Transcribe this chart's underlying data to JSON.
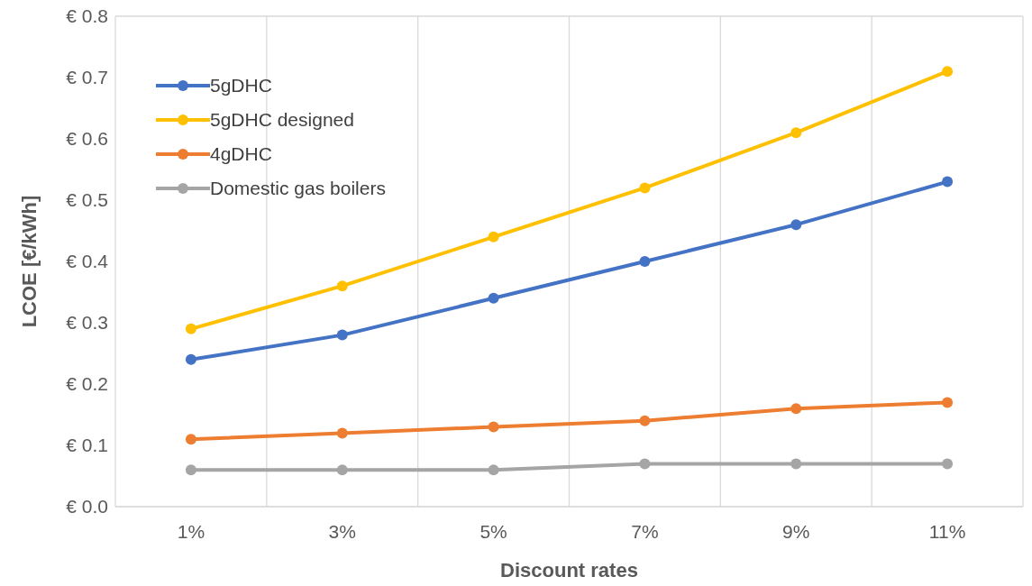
{
  "chart_data": {
    "type": "line",
    "xlabel": "Discount rates",
    "ylabel": "LCOE [€/kWh]",
    "categories": [
      "1%",
      "3%",
      "5%",
      "7%",
      "9%",
      "11%"
    ],
    "series": [
      {
        "name": "5gDHC",
        "color": "#4472c4",
        "values": [
          0.24,
          0.28,
          0.34,
          0.4,
          0.46,
          0.53
        ]
      },
      {
        "name": "5gDHC designed",
        "color": "#ffc000",
        "values": [
          0.29,
          0.36,
          0.44,
          0.52,
          0.61,
          0.71
        ]
      },
      {
        "name": "4gDHC",
        "color": "#ed7d31",
        "values": [
          0.11,
          0.12,
          0.13,
          0.14,
          0.16,
          0.17
        ]
      },
      {
        "name": "Domestic gas boilers",
        "color": "#a5a5a5",
        "values": [
          0.06,
          0.06,
          0.06,
          0.07,
          0.07,
          0.07
        ]
      }
    ],
    "ylim": [
      0,
      0.8
    ],
    "yticks": [
      {
        "value": 0,
        "label": "€ 0.0"
      },
      {
        "value": 0.1,
        "label": "€ 0.1"
      },
      {
        "value": 0.2,
        "label": "€ 0.2"
      },
      {
        "value": 0.3,
        "label": "€ 0.3"
      },
      {
        "value": 0.4,
        "label": "€ 0.4"
      },
      {
        "value": 0.5,
        "label": "€ 0.5"
      },
      {
        "value": 0.6,
        "label": "€ 0.6"
      },
      {
        "value": 0.7,
        "label": "€ 0.7"
      },
      {
        "value": 0.8,
        "label": "€ 0.8"
      }
    ],
    "grid": true,
    "legend": "top left",
    "marker": "circle",
    "line_style": "solid"
  }
}
